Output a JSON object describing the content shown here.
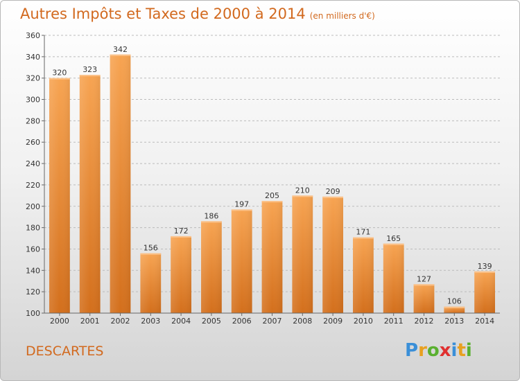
{
  "chart_data": {
    "type": "bar",
    "title": "Autres Impôts et Taxes de 2000 à 2014",
    "subtitle": "(en milliers d'€)",
    "categories": [
      "2000",
      "2001",
      "2002",
      "2003",
      "2004",
      "2005",
      "2006",
      "2007",
      "2008",
      "2009",
      "2010",
      "2011",
      "2012",
      "2013",
      "2014"
    ],
    "values": [
      320,
      323,
      342,
      156,
      172,
      186,
      197,
      205,
      210,
      209,
      171,
      165,
      127,
      106,
      139
    ],
    "ylim": [
      100,
      360
    ],
    "yticks": [
      "100",
      "120",
      "140",
      "160",
      "180",
      "200",
      "220",
      "240",
      "260",
      "280",
      "300",
      "320",
      "340",
      "360"
    ],
    "grid": true,
    "bar_color": "#f0923a"
  },
  "footer": {
    "commune": "DESCARTES",
    "logo": [
      "P",
      "r",
      "o",
      "x",
      "i",
      "t",
      "i"
    ],
    "logo_colors": [
      "#3a8fd8",
      "#e8a020",
      "#5ab030",
      "#e03030",
      "#3a8fd8",
      "#e8a020",
      "#5ab030"
    ]
  }
}
